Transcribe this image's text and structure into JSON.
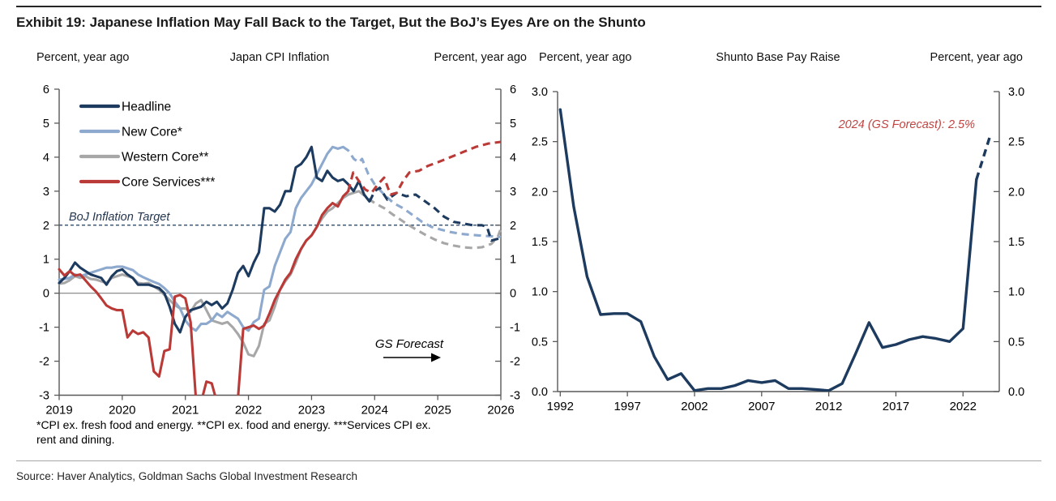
{
  "exhibit": {
    "title": "Exhibit 19: Japanese Inflation May Fall Back to the Target, But the BoJ’s Eyes Are on the Shunto",
    "footnote_lines": [
      "*CPI ex. fresh food and energy. **CPI ex. food and energy. ***Services CPI ex.",
      "rent and dining."
    ],
    "source": "Source: Haver Analytics, Goldman Sachs Global Investment Research"
  },
  "colors": {
    "navy": "#1d3a5f",
    "blue": "#8ea9ce",
    "gray": "#a7a7a7",
    "red": "#ba3a38",
    "annotation_red": "#bf4442",
    "axis": "#595959",
    "zero_line": "#808080"
  },
  "chart_data": [
    {
      "type": "line",
      "title": "Japan CPI Inflation",
      "ylabel_left": "Percent, year ago",
      "ylabel_right": "Percent, year ago",
      "ylim": [
        -3,
        6
      ],
      "xlim": [
        2019,
        2026
      ],
      "yticks": [
        {
          "v": 6,
          "label": "6"
        },
        {
          "v": 5,
          "label": "5"
        },
        {
          "v": 4,
          "label": "4"
        },
        {
          "v": 3,
          "label": "3"
        },
        {
          "v": 2,
          "label": "2"
        },
        {
          "v": 1,
          "label": "1"
        },
        {
          "v": 0,
          "label": "0"
        },
        {
          "v": -1,
          "label": "-1"
        },
        {
          "v": -2,
          "label": "-2"
        },
        {
          "v": -3,
          "label": "-3"
        }
      ],
      "xticks": [
        {
          "v": 2019,
          "label": "2019"
        },
        {
          "v": 2020,
          "label": "2020"
        },
        {
          "v": 2021,
          "label": "2021"
        },
        {
          "v": 2022,
          "label": "2022"
        },
        {
          "v": 2023,
          "label": "2023"
        },
        {
          "v": 2024,
          "label": "2024"
        },
        {
          "v": 2025,
          "label": "2025"
        },
        {
          "v": 2026,
          "label": "2026"
        }
      ],
      "grid": false,
      "legend_position": "top-left",
      "zero_line": true,
      "target_line": {
        "value": 2,
        "label": "BoJ Inflation Target"
      },
      "forecast_label": "GS Forecast",
      "series": [
        {
          "name": "Headline",
          "color_key": "navy",
          "solid": {
            "start": 2019,
            "step_months": 1,
            "values": [
              0.3,
              0.45,
              0.65,
              0.9,
              0.75,
              0.65,
              0.55,
              0.5,
              0.45,
              0.25,
              0.5,
              0.65,
              0.7,
              0.55,
              0.45,
              0.25,
              0.25,
              0.25,
              0.2,
              0.15,
              0.0,
              -0.4,
              -0.9,
              -1.15,
              -0.7,
              -0.5,
              -0.45,
              -0.4,
              -0.25,
              -0.35,
              -0.25,
              -0.45,
              -0.3,
              0.1,
              0.6,
              0.8,
              0.5,
              0.9,
              1.2,
              2.5,
              2.5,
              2.4,
              2.6,
              3.0,
              3.0,
              3.7,
              3.8,
              4.0,
              4.3,
              3.4,
              3.3,
              3.6,
              3.4,
              3.3,
              3.35,
              3.2,
              3.0,
              3.3,
              2.9,
              2.7
            ]
          },
          "dashed": [
            [
              2023.92,
              2.7
            ],
            [
              2024.0,
              3.0
            ],
            [
              2024.08,
              3.1
            ],
            [
              2024.2,
              2.75
            ],
            [
              2024.35,
              2.95
            ],
            [
              2024.5,
              2.85
            ],
            [
              2024.65,
              2.9
            ],
            [
              2024.8,
              2.7
            ],
            [
              2024.95,
              2.5
            ],
            [
              2025.1,
              2.25
            ],
            [
              2025.25,
              2.1
            ],
            [
              2025.4,
              2.05
            ],
            [
              2025.55,
              2.0
            ],
            [
              2025.7,
              2.0
            ],
            [
              2025.78,
              1.95
            ],
            [
              2025.85,
              1.55
            ],
            [
              2025.95,
              1.6
            ],
            [
              2026.0,
              1.63
            ]
          ]
        },
        {
          "name": "New Core*",
          "color_key": "blue",
          "solid": {
            "start": 2019,
            "step_months": 1,
            "values": [
              0.4,
              0.42,
              0.45,
              0.55,
              0.5,
              0.55,
              0.6,
              0.65,
              0.7,
              0.75,
              0.75,
              0.78,
              0.78,
              0.73,
              0.68,
              0.55,
              0.47,
              0.4,
              0.33,
              0.27,
              0.15,
              0.0,
              -0.25,
              -0.45,
              -0.8,
              -1.0,
              -1.1,
              -0.9,
              -0.9,
              -0.8,
              -0.6,
              -0.7,
              -0.55,
              -0.65,
              -0.75,
              -1.0,
              -1.1,
              -0.85,
              -0.75,
              0.1,
              0.2,
              0.8,
              1.2,
              1.6,
              1.8,
              2.5,
              2.8,
              3.0,
              3.2,
              3.5,
              3.8,
              4.1,
              4.3,
              4.25,
              4.3
            ]
          },
          "dashed": [
            [
              2023.5,
              4.3
            ],
            [
              2023.58,
              4.2
            ],
            [
              2023.67,
              3.95
            ],
            [
              2023.75,
              3.85
            ],
            [
              2023.8,
              3.95
            ],
            [
              2023.9,
              3.5
            ],
            [
              2024.0,
              3.2
            ],
            [
              2024.15,
              2.9
            ],
            [
              2024.3,
              2.65
            ],
            [
              2024.45,
              2.5
            ],
            [
              2024.6,
              2.3
            ],
            [
              2024.75,
              2.1
            ],
            [
              2024.9,
              1.95
            ],
            [
              2025.05,
              1.87
            ],
            [
              2025.2,
              1.8
            ],
            [
              2025.35,
              1.75
            ],
            [
              2025.5,
              1.72
            ],
            [
              2025.65,
              1.7
            ],
            [
              2025.8,
              1.68
            ],
            [
              2025.95,
              1.66
            ],
            [
              2026.0,
              1.65
            ]
          ]
        },
        {
          "name": "Western Core**",
          "color_key": "gray",
          "solid": {
            "start": 2019,
            "step_months": 1,
            "values": [
              0.28,
              0.3,
              0.38,
              0.5,
              0.45,
              0.5,
              0.42,
              0.4,
              0.35,
              0.3,
              0.45,
              0.5,
              0.55,
              0.5,
              0.45,
              0.3,
              0.28,
              0.3,
              0.2,
              0.1,
              -0.05,
              -0.2,
              -0.35,
              -0.45,
              -0.45,
              -0.55,
              -0.3,
              -0.2,
              -0.5,
              -0.8,
              -0.85,
              -0.9,
              -0.85,
              -1.0,
              -1.2,
              -1.45,
              -1.8,
              -1.85,
              -1.55,
              -0.9,
              -0.8,
              -0.4,
              0.1,
              0.35,
              0.55,
              0.9,
              1.3,
              1.55,
              1.7,
              1.95,
              2.2,
              2.4,
              2.5,
              2.65,
              2.8,
              2.9,
              2.95,
              3.0
            ]
          },
          "dashed": [
            [
              2023.75,
              3.0
            ],
            [
              2023.85,
              2.85
            ],
            [
              2024.0,
              2.65
            ],
            [
              2024.15,
              2.5
            ],
            [
              2024.3,
              2.3
            ],
            [
              2024.5,
              2.05
            ],
            [
              2024.65,
              1.88
            ],
            [
              2024.8,
              1.72
            ],
            [
              2024.95,
              1.58
            ],
            [
              2025.1,
              1.47
            ],
            [
              2025.25,
              1.4
            ],
            [
              2025.4,
              1.35
            ],
            [
              2025.55,
              1.33
            ],
            [
              2025.7,
              1.35
            ],
            [
              2025.85,
              1.45
            ],
            [
              2025.95,
              1.65
            ],
            [
              2026.0,
              1.9
            ]
          ]
        },
        {
          "name": "Core Services***",
          "color_key": "red",
          "solid": {
            "start": 2019,
            "step_months": 1,
            "values": [
              0.7,
              0.52,
              0.65,
              0.52,
              0.55,
              0.38,
              0.2,
              0.05,
              -0.15,
              -0.36,
              -0.45,
              -0.5,
              -0.5,
              -1.3,
              -1.1,
              -1.2,
              -1.15,
              -1.3,
              -2.3,
              -2.45,
              -1.7,
              -1.65,
              -0.1,
              -0.05,
              -0.15,
              -0.85,
              -3.1,
              -3.2,
              -2.6,
              -2.65,
              -3.2,
              -3.35,
              -3.3,
              -3.2,
              -3.1,
              -1.05,
              -1.0,
              -0.95,
              -1.05,
              -0.95,
              -0.6,
              -0.2,
              0.1,
              0.4,
              0.6,
              1.0,
              1.3,
              1.55,
              1.7,
              1.95,
              2.3,
              2.5,
              2.65,
              2.55,
              2.85,
              3.0
            ]
          },
          "dashed": [
            [
              2023.58,
              3.0
            ],
            [
              2023.66,
              3.55
            ],
            [
              2023.75,
              3.3
            ],
            [
              2023.85,
              3.05
            ],
            [
              2023.95,
              2.95
            ],
            [
              2024.05,
              3.2
            ],
            [
              2024.15,
              3.4
            ],
            [
              2024.25,
              2.9
            ],
            [
              2024.35,
              2.95
            ],
            [
              2024.45,
              3.3
            ],
            [
              2024.55,
              3.55
            ],
            [
              2024.7,
              3.6
            ],
            [
              2024.85,
              3.75
            ],
            [
              2025.0,
              3.85
            ],
            [
              2025.2,
              4.0
            ],
            [
              2025.4,
              4.15
            ],
            [
              2025.6,
              4.3
            ],
            [
              2025.8,
              4.4
            ],
            [
              2026.0,
              4.45
            ]
          ]
        }
      ]
    },
    {
      "type": "line",
      "title": "Shunto Base Pay Raise",
      "ylabel_left": "Percent, year ago",
      "ylabel_right": "Percent, year ago",
      "ylim": [
        0,
        3
      ],
      "xlim": [
        1991.8,
        2024.7
      ],
      "yticks": [
        {
          "v": 3.0,
          "label": "3.0"
        },
        {
          "v": 2.5,
          "label": "2.5"
        },
        {
          "v": 2.0,
          "label": "2.0"
        },
        {
          "v": 1.5,
          "label": "1.5"
        },
        {
          "v": 1.0,
          "label": "1.0"
        },
        {
          "v": 0.5,
          "label": "0.5"
        },
        {
          "v": 0.0,
          "label": "0.0"
        }
      ],
      "xticks": [
        {
          "v": 1992,
          "label": "1992"
        },
        {
          "v": 1997,
          "label": "1997"
        },
        {
          "v": 2002,
          "label": "2002"
        },
        {
          "v": 2007,
          "label": "2007"
        },
        {
          "v": 2012,
          "label": "2012"
        },
        {
          "v": 2017,
          "label": "2017"
        },
        {
          "v": 2022,
          "label": "2022"
        }
      ],
      "grid": false,
      "zero_line": false,
      "annotation": {
        "text": "2024 (GS Forecast): 2.5%",
        "color_key": "annotation_red"
      },
      "series": [
        {
          "name": "Shunto base pay raise",
          "color_key": "navy",
          "solid": {
            "start": 1992,
            "step_months": 12,
            "values": [
              2.82,
              1.85,
              1.15,
              0.77,
              0.78,
              0.78,
              0.7,
              0.35,
              0.12,
              0.18,
              0.01,
              0.03,
              0.03,
              0.06,
              0.11,
              0.09,
              0.11,
              0.03,
              0.03,
              0.02,
              0.01,
              0.08,
              0.38,
              0.69,
              0.44,
              0.47,
              0.52,
              0.55,
              0.53,
              0.5,
              0.63,
              2.12
            ]
          },
          "dashed": [
            [
              2023,
              2.12
            ],
            [
              2024,
              2.55
            ]
          ]
        }
      ]
    }
  ]
}
